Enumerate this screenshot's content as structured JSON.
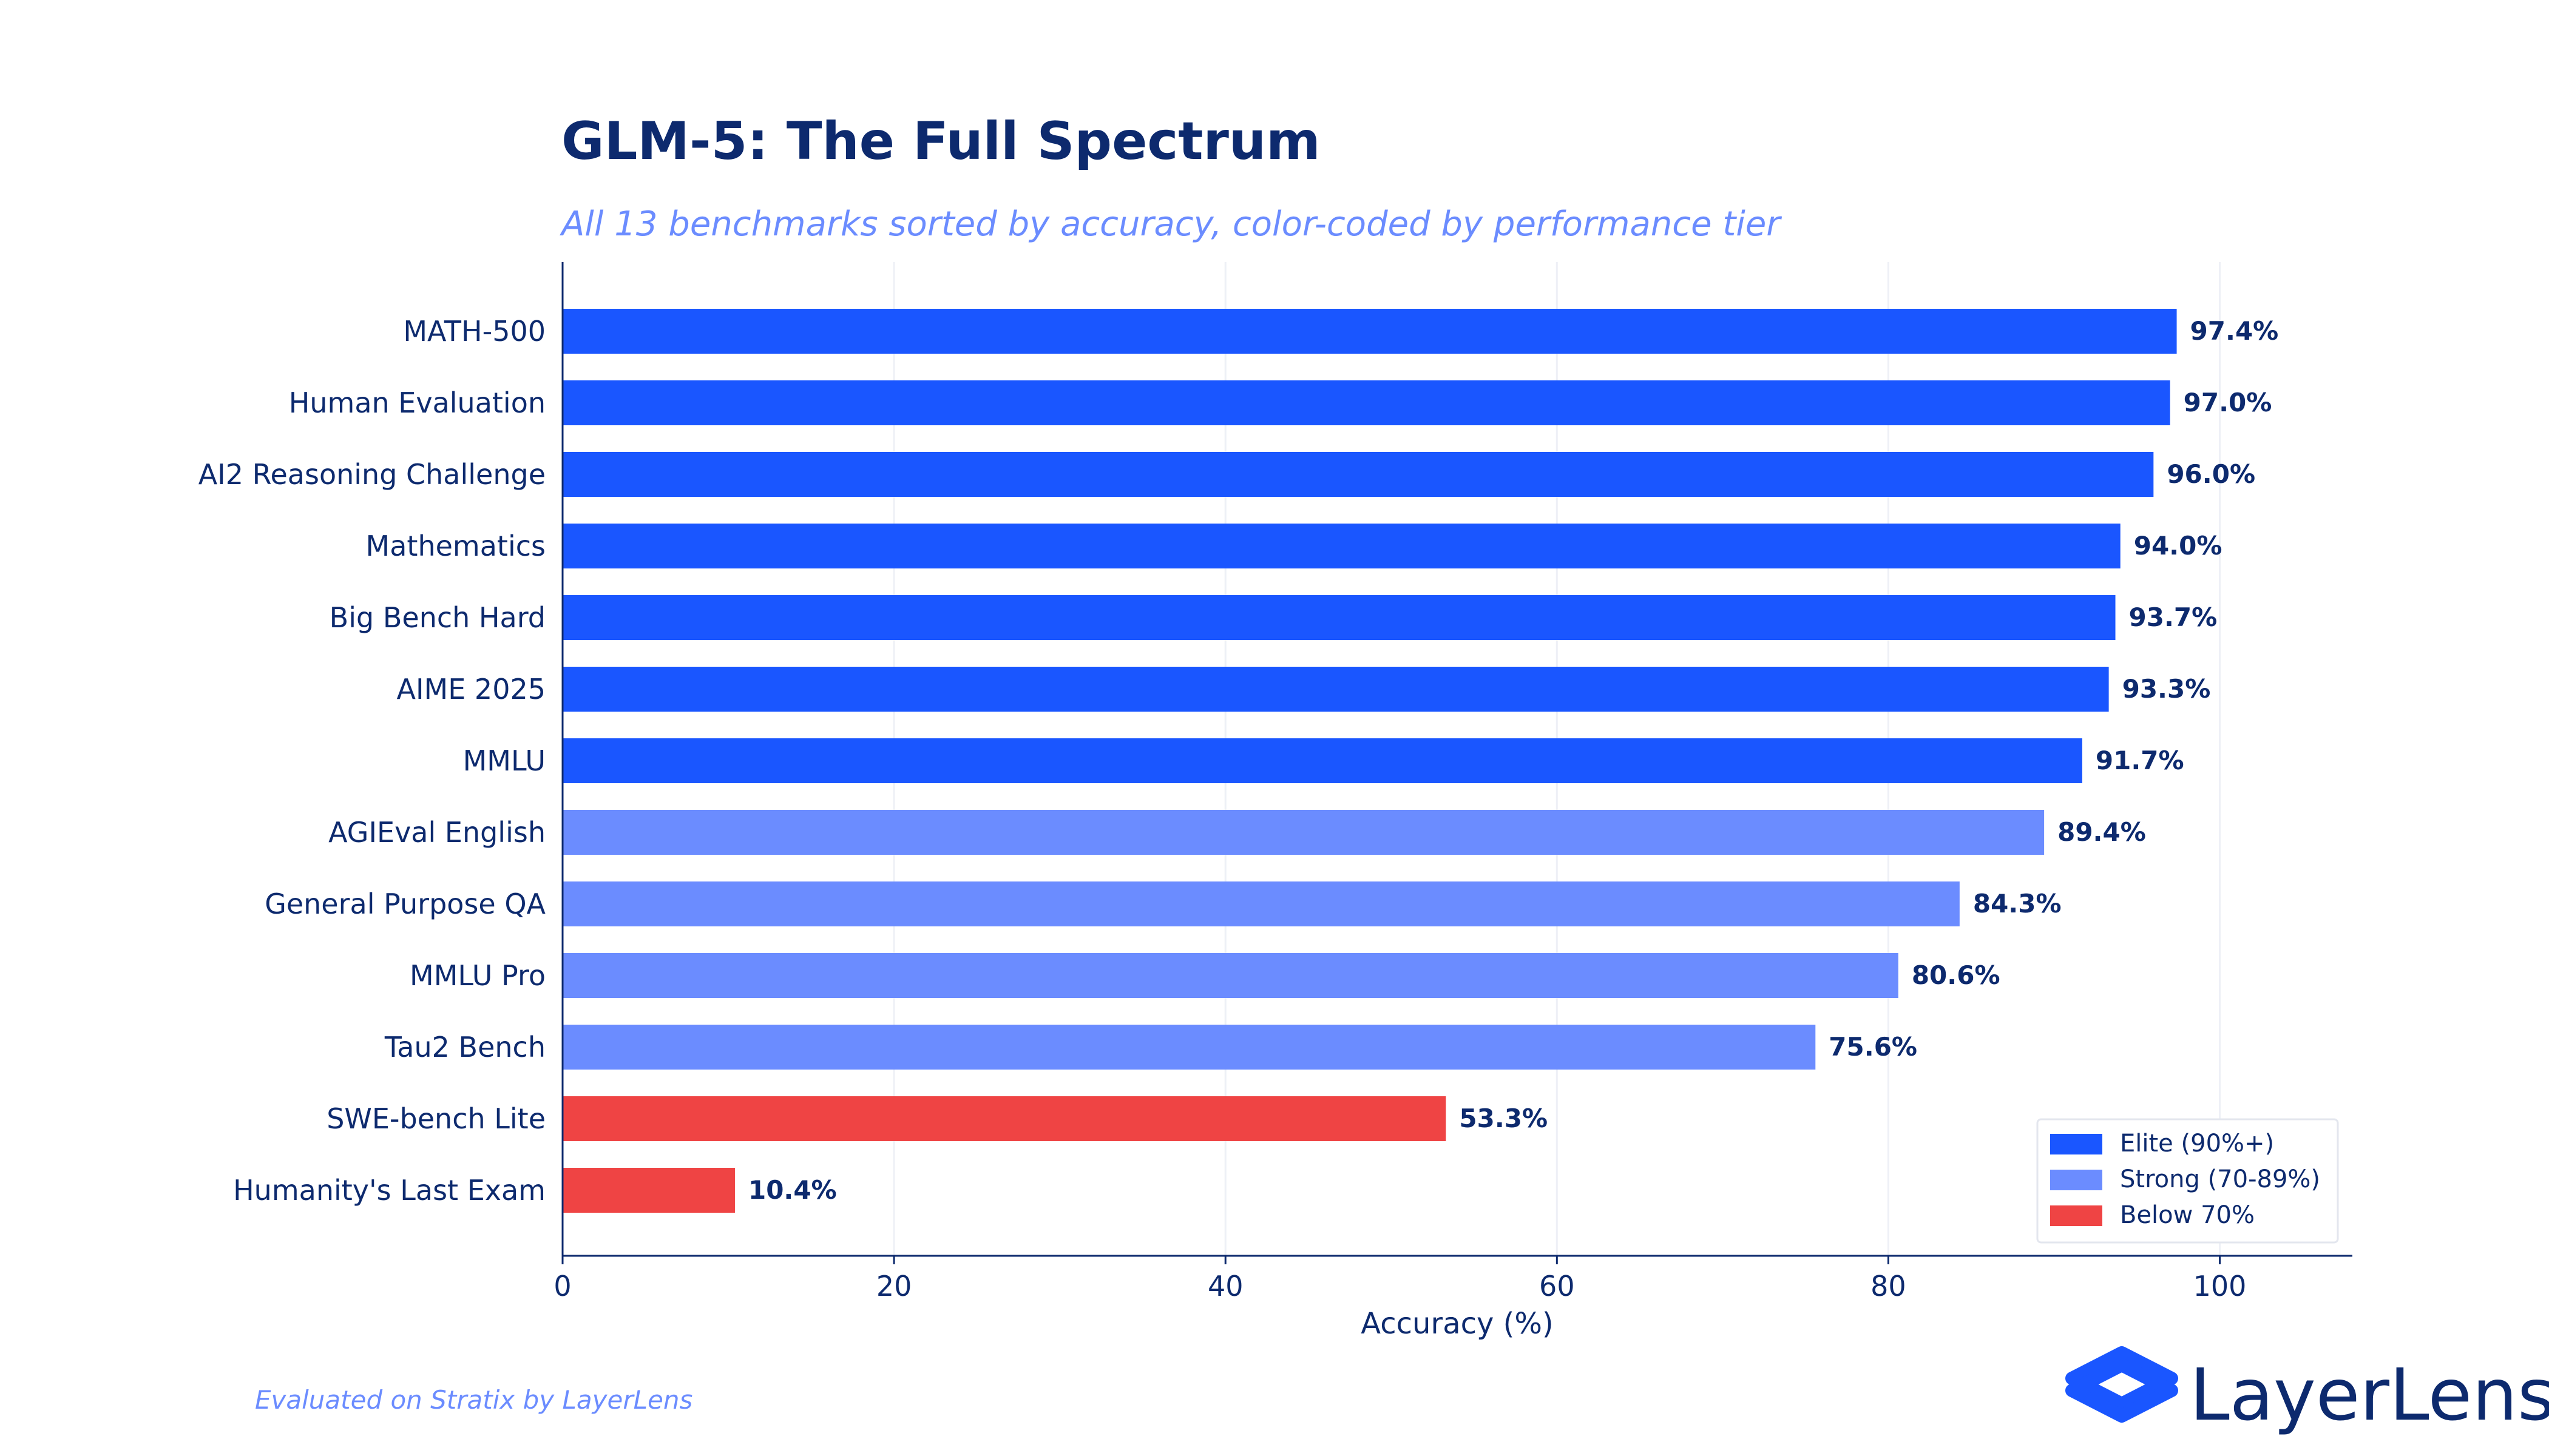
{
  "title": "GLM-5: The Full Spectrum",
  "subtitle": "All 13 benchmarks sorted by accuracy, color-coded by performance tier",
  "footer": "Evaluated on Stratix by LayerLens",
  "brand": {
    "name": "LayerLens",
    "logo_icon": "layers-icon"
  },
  "colors": {
    "elite": "#1a56ff",
    "strong": "#6b8cff",
    "below": "#ef4444",
    "text": "#0d2a6e"
  },
  "legend": [
    {
      "tier": "elite",
      "label": "Elite (90%+)"
    },
    {
      "tier": "strong",
      "label": "Strong (70-89%)"
    },
    {
      "tier": "below",
      "label": "Below 70%"
    }
  ],
  "chart_data": {
    "type": "bar",
    "orientation": "horizontal",
    "title": "GLM-5: The Full Spectrum",
    "xlabel": "Accuracy (%)",
    "ylabel": "",
    "xlim": [
      0,
      108
    ],
    "xticks": [
      0,
      20,
      40,
      60,
      80,
      100
    ],
    "grid": "vertical",
    "legend_position": "bottom-right",
    "categories": [
      "MATH-500",
      "Human Evaluation",
      "AI2 Reasoning Challenge",
      "Mathematics",
      "Big Bench Hard",
      "AIME 2025",
      "MMLU",
      "AGIEval English",
      "General Purpose QA",
      "MMLU Pro",
      "Tau2 Bench",
      "SWE-bench Lite",
      "Humanity's Last Exam"
    ],
    "values": [
      97.4,
      97.0,
      96.0,
      94.0,
      93.7,
      93.3,
      91.7,
      89.4,
      84.3,
      80.6,
      75.6,
      53.3,
      10.4
    ],
    "value_labels": [
      "97.4%",
      "97.0%",
      "96.0%",
      "94.0%",
      "93.7%",
      "93.3%",
      "91.7%",
      "89.4%",
      "84.3%",
      "80.6%",
      "75.6%",
      "53.3%",
      "10.4%"
    ],
    "tiers": [
      "elite",
      "elite",
      "elite",
      "elite",
      "elite",
      "elite",
      "elite",
      "strong",
      "strong",
      "strong",
      "strong",
      "below",
      "below"
    ]
  }
}
